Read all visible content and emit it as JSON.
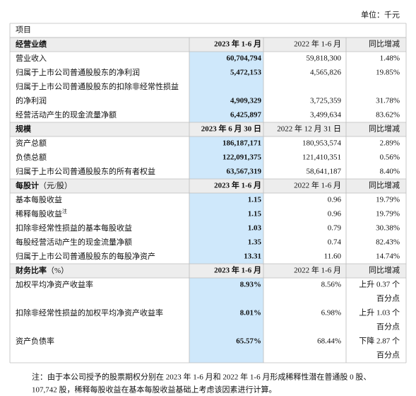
{
  "unit": "单位：千元",
  "item_header": "项目",
  "sections": [
    {
      "header": {
        "label": "经营业绩",
        "current": "2023 年 1-6 月",
        "previous": "2022 年 1-6 月",
        "change": "同比增减"
      },
      "rows": [
        {
          "label": [
            "营业收入"
          ],
          "current": "60,704,794",
          "previous": "59,818,300",
          "change": [
            "1.48%"
          ]
        },
        {
          "label": [
            "归属于上市公司普通股股东的净利润"
          ],
          "current": "5,472,153",
          "previous": "4,565,826",
          "change": [
            "19.85%"
          ]
        },
        {
          "label": [
            "归属于上市公司普通股股东的扣除非经常性损益",
            "的净利润"
          ],
          "current": "4,909,329",
          "previous": "3,725,359",
          "change": [
            "31.78%"
          ]
        },
        {
          "label": [
            "经营活动产生的现金流量净额"
          ],
          "current": "6,425,897",
          "previous": "3,499,634",
          "change": [
            "83.62%"
          ]
        }
      ]
    },
    {
      "header": {
        "label": "规模",
        "current": "2023 年 6 月 30 日",
        "previous": "2022 年 12 月 31 日",
        "change": "同比增减"
      },
      "rows": [
        {
          "label": [
            "资产总额"
          ],
          "current": "186,187,171",
          "previous": "180,953,574",
          "change": [
            "2.89%"
          ]
        },
        {
          "label": [
            "负债总额"
          ],
          "current": "122,091,375",
          "previous": "121,410,351",
          "change": [
            "0.56%"
          ]
        },
        {
          "label": [
            "归属于上市公司普通股股东的所有者权益"
          ],
          "current": "63,567,319",
          "previous": "58,641,187",
          "change": [
            "8.40%"
          ]
        }
      ]
    },
    {
      "header": {
        "label": "每股计",
        "label_suffix": "（元/股）",
        "current": "2023 年 1-6 月",
        "previous": "2022 年 1-6 月",
        "change": "同比增减"
      },
      "rows": [
        {
          "label": [
            "基本每股收益"
          ],
          "current": "1.15",
          "previous": "0.96",
          "change": [
            "19.79%"
          ]
        },
        {
          "label": [
            "稀释每股收益"
          ],
          "note_mark": "注",
          "current": "1.15",
          "previous": "0.96",
          "change": [
            "19.79%"
          ]
        },
        {
          "label": [
            "扣除非经常性损益的基本每股收益"
          ],
          "current": "1.03",
          "previous": "0.79",
          "change": [
            "30.38%"
          ]
        },
        {
          "label": [
            "每股经营活动产生的现金流量净额"
          ],
          "current": "1.35",
          "previous": "0.74",
          "change": [
            "82.43%"
          ]
        },
        {
          "label": [
            "归属于上市公司普通股股东的每股净资产"
          ],
          "current": "13.31",
          "previous": "11.60",
          "change": [
            "14.74%"
          ]
        }
      ]
    },
    {
      "header": {
        "label": "财务比率",
        "label_suffix": "（%）",
        "current": "2023 年 1-6 月",
        "previous": "2022 年 1-6 月",
        "change": "同比增减"
      },
      "rows": [
        {
          "label": [
            "加权平均净资产收益率"
          ],
          "current": "8.93%",
          "previous": "8.56%",
          "change": [
            "上升 0.37 个",
            "百分点"
          ]
        },
        {
          "label": [
            "扣除非经常性损益的加权平均净资产收益率"
          ],
          "current": "8.01%",
          "previous": "6.98%",
          "change": [
            "上升 1.03 个",
            "百分点"
          ]
        },
        {
          "label": [
            "资产负债率"
          ],
          "current": "65.57%",
          "previous": "68.44%",
          "change": [
            "下降 2.87 个",
            "百分点"
          ]
        }
      ]
    }
  ],
  "note": [
    "注：由于本公司授予的股票期权分别在 2023 年 1-6 月和 2022 年 1-6 月形成稀释性潜在普通股 0 股、",
    "107,742 股，稀释每股收益在基本每股收益基础上考虑该因素进行计算。"
  ]
}
